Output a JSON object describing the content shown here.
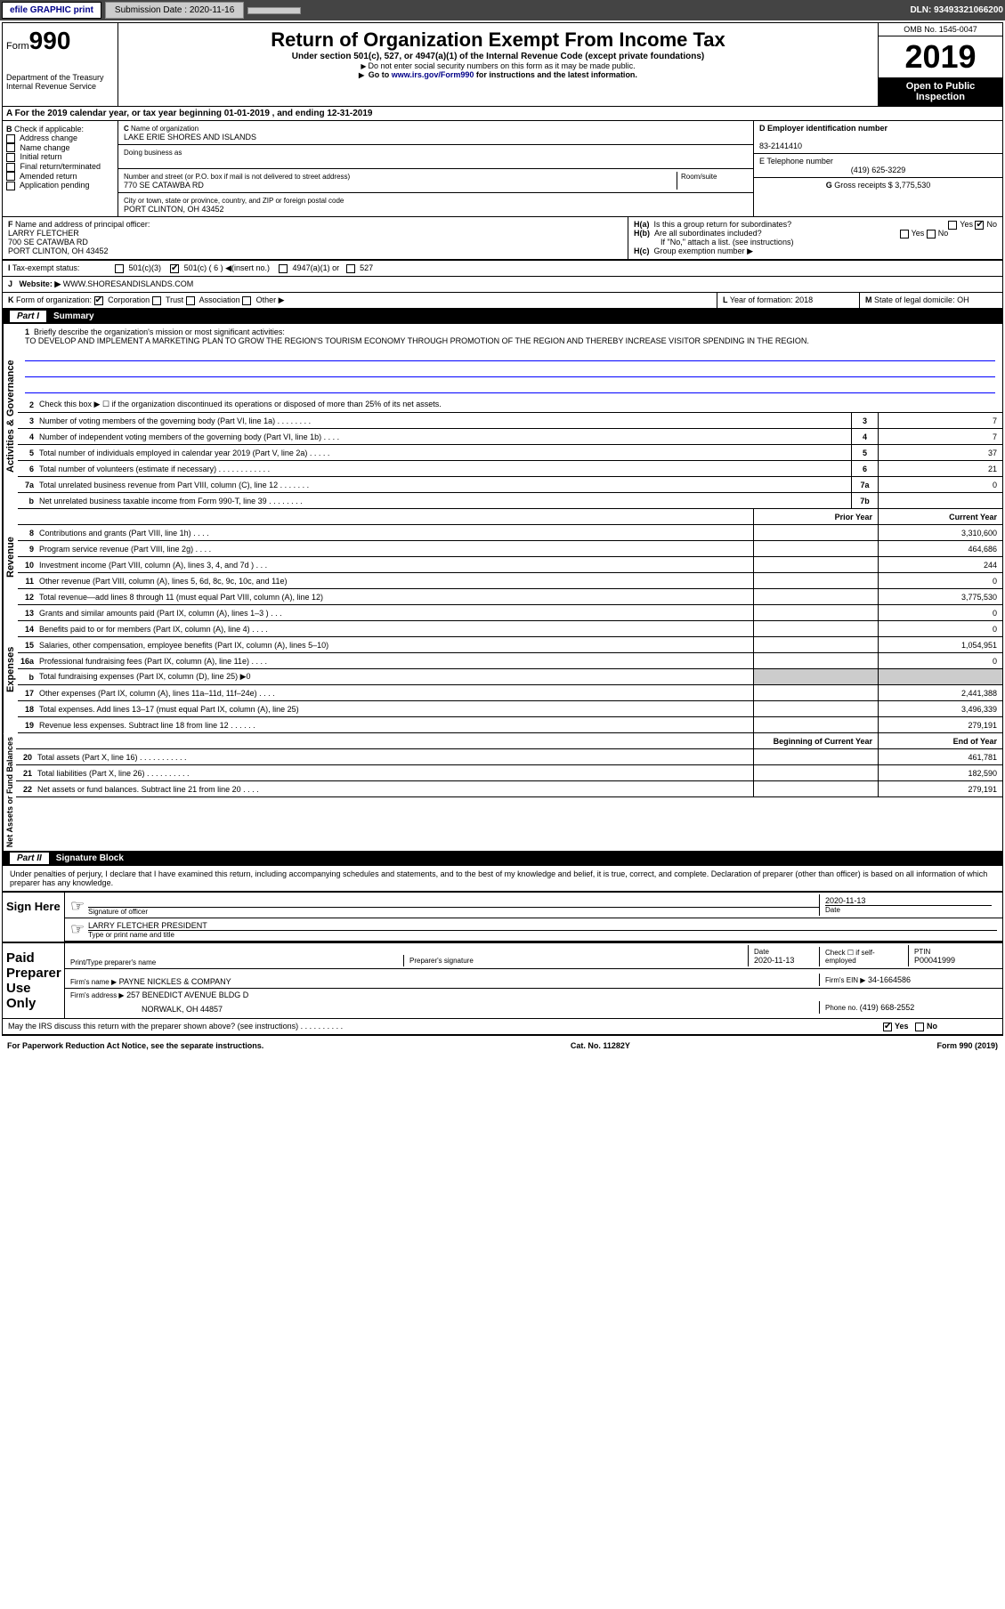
{
  "topbar": {
    "efile": "efile GRAPHIC print",
    "submission_label": "Submission Date : ",
    "submission_date": "2020-11-16",
    "dln_label": "DLN: ",
    "dln": "93493321066200"
  },
  "header": {
    "form_prefix": "Form",
    "form_number": "990",
    "dept": "Department of the Treasury\nInternal Revenue Service",
    "title": "Return of Organization Exempt From Income Tax",
    "subtitle": "Under section 501(c), 527, or 4947(a)(1) of the Internal Revenue Code (except private foundations)",
    "note1": "Do not enter social security numbers on this form as it may be made public.",
    "note2_prefix": "Go to ",
    "note2_link": "www.irs.gov/Form990",
    "note2_suffix": " for instructions and the latest information.",
    "omb": "OMB No. 1545-0047",
    "year": "2019",
    "inspection": "Open to Public Inspection"
  },
  "row_a": {
    "text": "For the 2019 calendar year, or tax year beginning 01-01-2019    , and ending 12-31-2019"
  },
  "section_b": {
    "b_label": "Check if applicable:",
    "b_items": [
      "Address change",
      "Name change",
      "Initial return",
      "Final return/terminated",
      "Amended return",
      "Application pending"
    ],
    "c_name_label": "Name of organization",
    "c_name": "LAKE ERIE SHORES AND ISLANDS",
    "c_dba_label": "Doing business as",
    "c_addr_label": "Number and street (or P.O. box if mail is not delivered to street address)",
    "c_addr": "770 SE CATAWBA RD",
    "c_room_label": "Room/suite",
    "c_city_label": "City or town, state or province, country, and ZIP or foreign postal code",
    "c_city": "PORT CLINTON, OH  43452",
    "d_ein_label": "Employer identification number",
    "d_ein": "83-2141410",
    "e_tel_label": "E Telephone number",
    "e_tel": "(419) 625-3229",
    "g_label": "Gross receipts $ ",
    "g_val": "3,775,530"
  },
  "section_f": {
    "f_label": "Name and address of principal officer:",
    "f_name": "LARRY FLETCHER",
    "f_addr1": "700 SE CATAWBA RD",
    "f_addr2": "PORT CLINTON, OH  43452",
    "ha_label": "Is this a group return for subordinates?",
    "hb_label": "Are all subordinates included?",
    "hb_note": "If \"No,\" attach a list. (see instructions)",
    "hc_label": "Group exemption number"
  },
  "tax_status": {
    "label": "Tax-exempt status:",
    "opt1": "501(c)(3)",
    "opt2": "501(c) ( 6 )",
    "opt2_suffix": "(insert no.)",
    "opt3": "4947(a)(1) or",
    "opt4": "527"
  },
  "website": {
    "label": "Website:",
    "value": "WWW.SHORESANDISLANDS.COM"
  },
  "form_org": {
    "k_label": "Form of organization:",
    "k_opts": [
      "Corporation",
      "Trust",
      "Association",
      "Other"
    ],
    "l_label": "Year of formation: ",
    "l_val": "2018",
    "m_label": "State of legal domicile: ",
    "m_val": "OH"
  },
  "part1": {
    "title": "Part I",
    "name": "Summary",
    "q1_label": "Briefly describe the organization's mission or most significant activities:",
    "q1_text": "TO DEVELOP AND IMPLEMENT A MARKETING PLAN TO GROW THE REGION'S TOURISM ECONOMY THROUGH PROMOTION OF THE REGION AND THEREBY INCREASE VISITOR SPENDING IN THE REGION.",
    "q2_label": "Check this box ▶ ☐  if the organization discontinued its operations or disposed of more than 25% of its net assets."
  },
  "side_labels": {
    "gov": "Activities & Governance",
    "rev": "Revenue",
    "exp": "Expenses",
    "net": "Net Assets or Fund Balances"
  },
  "gov_rows": [
    {
      "n": "3",
      "label": "Number of voting members of the governing body (Part VI, line 1a)  .    .    .    .    .    .    .    .",
      "box": "3",
      "val": "7"
    },
    {
      "n": "4",
      "label": "Number of independent voting members of the governing body (Part VI, line 1b)  .    .    .    .",
      "box": "4",
      "val": "7"
    },
    {
      "n": "5",
      "label": "Total number of individuals employed in calendar year 2019 (Part V, line 2a)  .    .    .    .    .",
      "box": "5",
      "val": "37"
    },
    {
      "n": "6",
      "label": "Total number of volunteers (estimate if necessary)   .    .    .    .    .    .    .    .    .    .    .    .",
      "box": "6",
      "val": "21"
    },
    {
      "n": "7a",
      "label": "Total unrelated business revenue from Part VIII, column (C), line 12  .    .    .    .    .    .    .",
      "box": "7a",
      "val": "0"
    },
    {
      "n": "b",
      "label": "Net unrelated business taxable income from Form 990-T, line 39   .    .    .    .    .    .    .    .",
      "box": "7b",
      "val": ""
    }
  ],
  "col_headers": {
    "prior": "Prior Year",
    "current": "Current Year",
    "beg": "Beginning of Current Year",
    "end": "End of Year"
  },
  "rev_rows": [
    {
      "n": "8",
      "label": "Contributions and grants (Part VIII, line 1h)   .    .    .    .",
      "prior": "",
      "cur": "3,310,600"
    },
    {
      "n": "9",
      "label": "Program service revenue (Part VIII, line 2g)  .    .    .    .",
      "prior": "",
      "cur": "464,686"
    },
    {
      "n": "10",
      "label": "Investment income (Part VIII, column (A), lines 3, 4, and 7d )   .    .    .",
      "prior": "",
      "cur": "244"
    },
    {
      "n": "11",
      "label": "Other revenue (Part VIII, column (A), lines 5, 6d, 8c, 9c, 10c, and 11e)",
      "prior": "",
      "cur": "0"
    },
    {
      "n": "12",
      "label": "Total revenue—add lines 8 through 11 (must equal Part VIII, column (A), line 12)",
      "prior": "",
      "cur": "3,775,530"
    }
  ],
  "exp_rows": [
    {
      "n": "13",
      "label": "Grants and similar amounts paid (Part IX, column (A), lines 1–3 )  .    .    .",
      "prior": "",
      "cur": "0"
    },
    {
      "n": "14",
      "label": "Benefits paid to or for members (Part IX, column (A), line 4)  .    .    .    .",
      "prior": "",
      "cur": "0"
    },
    {
      "n": "15",
      "label": "Salaries, other compensation, employee benefits (Part IX, column (A), lines 5–10)",
      "prior": "",
      "cur": "1,054,951"
    },
    {
      "n": "16a",
      "label": "Professional fundraising fees (Part IX, column (A), line 11e)  .    .    .    .",
      "prior": "",
      "cur": "0"
    },
    {
      "n": "b",
      "label": "Total fundraising expenses (Part IX, column (D), line 25) ▶0",
      "prior": "shaded",
      "cur": "shaded"
    },
    {
      "n": "17",
      "label": "Other expenses (Part IX, column (A), lines 11a–11d, 11f–24e)  .    .    .    .",
      "prior": "",
      "cur": "2,441,388"
    },
    {
      "n": "18",
      "label": "Total expenses. Add lines 13–17 (must equal Part IX, column (A), line 25)",
      "prior": "",
      "cur": "3,496,339"
    },
    {
      "n": "19",
      "label": "Revenue less expenses. Subtract line 18 from line 12  .    .    .    .    .    .",
      "prior": "",
      "cur": "279,191"
    }
  ],
  "net_rows": [
    {
      "n": "20",
      "label": "Total assets (Part X, line 16)  .    .    .    .    .    .    .    .    .    .    .",
      "prior": "",
      "cur": "461,781"
    },
    {
      "n": "21",
      "label": "Total liabilities (Part X, line 26)  .    .    .    .    .    .    .    .    .    .",
      "prior": "",
      "cur": "182,590"
    },
    {
      "n": "22",
      "label": "Net assets or fund balances. Subtract line 21 from line 20  .    .    .    .",
      "prior": "",
      "cur": "279,191"
    }
  ],
  "part2": {
    "title": "Part II",
    "name": "Signature Block",
    "perjury": "Under penalties of perjury, I declare that I have examined this return, including accompanying schedules and statements, and to the best of my knowledge and belief, it is true, correct, and complete. Declaration of preparer (other than officer) is based on all information of which preparer has any knowledge."
  },
  "sign": {
    "here": "Sign Here",
    "sig_label": "Signature of officer",
    "date_label": "Date",
    "date": "2020-11-13",
    "name": "LARRY FLETCHER PRESIDENT",
    "name_label": "Type or print name and title"
  },
  "preparer": {
    "title": "Paid Preparer Use Only",
    "name_label": "Print/Type preparer's name",
    "sig_label": "Preparer's signature",
    "date_label": "Date",
    "date": "2020-11-13",
    "check_label": "Check ☐ if self-employed",
    "ptin_label": "PTIN",
    "ptin": "P00041999",
    "firm_name_label": "Firm's name    ▶",
    "firm_name": "PAYNE NICKLES & COMPANY",
    "firm_ein_label": "Firm's EIN ▶",
    "firm_ein": "34-1664586",
    "firm_addr_label": "Firm's address ▶",
    "firm_addr1": "257 BENEDICT AVENUE BLDG D",
    "firm_addr2": "NORWALK, OH  44857",
    "phone_label": "Phone no. ",
    "phone": "(419) 668-2552"
  },
  "discuss": {
    "label": "May the IRS discuss this return with the preparer shown above? (see instructions)   .    .    .    .    .    .    .    .    .    .",
    "yes": "Yes",
    "no": "No"
  },
  "footer": {
    "left": "For Paperwork Reduction Act Notice, see the separate instructions.",
    "mid": "Cat. No. 11282Y",
    "right": "Form 990 (2019)"
  }
}
